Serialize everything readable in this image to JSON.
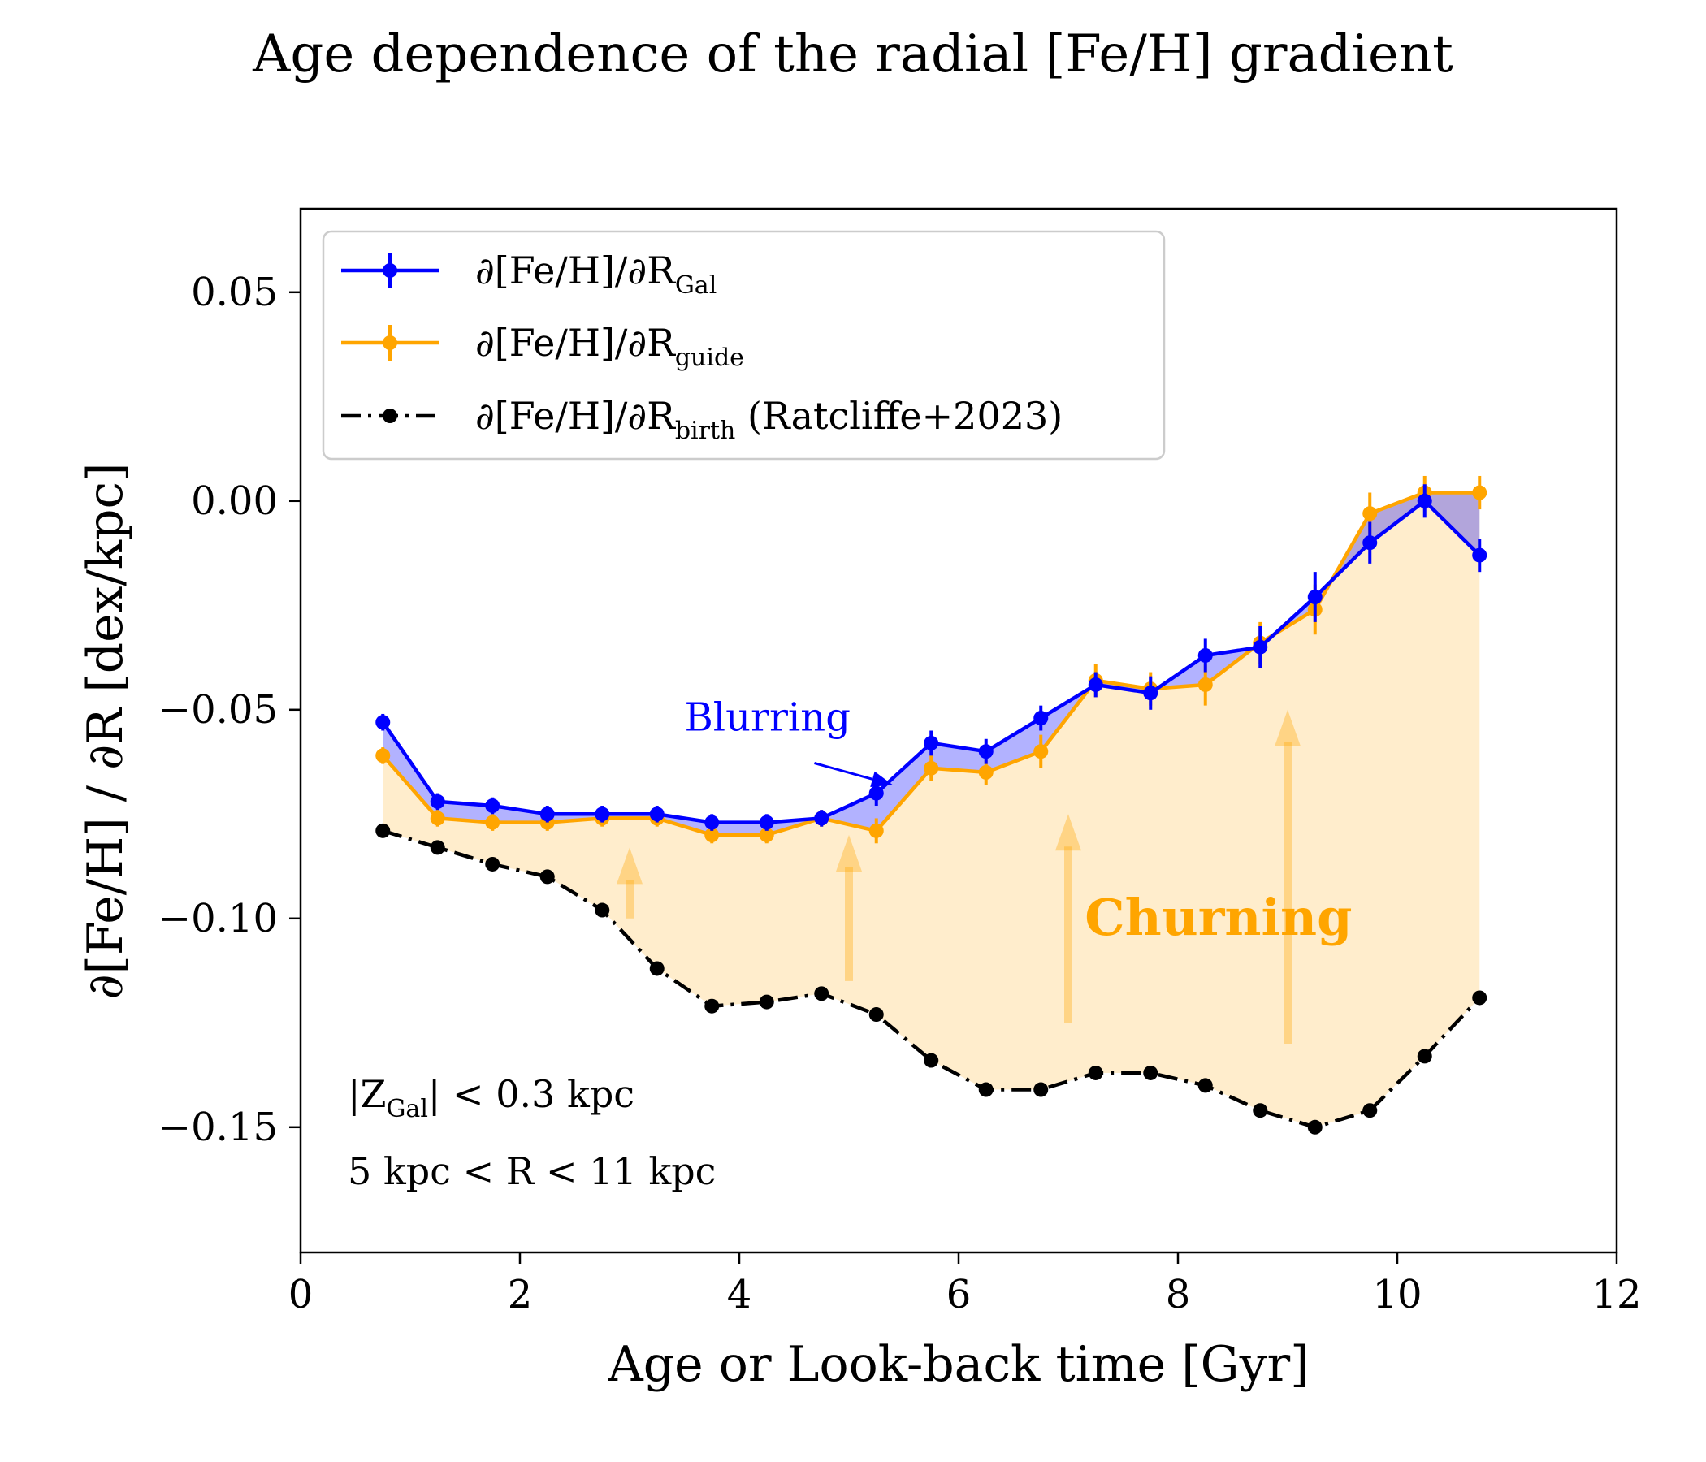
{
  "chart_data": {
    "type": "line",
    "title": "Age dependence of the radial [Fe/H] gradient",
    "xlabel": "Age or Look-back time [Gyr]",
    "ylabel": "∂[Fe/H] / ∂R [dex/kpc]",
    "xlim": [
      0,
      12
    ],
    "ylim": [
      -0.18,
      0.07
    ],
    "x_ticks": [
      0,
      2,
      4,
      6,
      8,
      10,
      12
    ],
    "x_tick_labels": [
      "0",
      "2",
      "4",
      "6",
      "8",
      "10",
      "12"
    ],
    "y_ticks": [
      0.05,
      0.0,
      -0.05,
      -0.1,
      -0.15
    ],
    "y_tick_labels": [
      "0.05",
      "0.00",
      "−0.05",
      "−0.10",
      "−0.15"
    ],
    "grid": false,
    "legend_position": "top-left",
    "x": [
      0.75,
      1.25,
      1.75,
      2.25,
      2.75,
      3.25,
      3.75,
      4.25,
      4.75,
      5.25,
      5.75,
      6.25,
      6.75,
      7.25,
      7.75,
      8.25,
      8.75,
      9.25,
      9.75,
      10.25,
      10.75
    ],
    "series": [
      {
        "key": "gal",
        "legend": {
          "main": "∂[Fe/H]/∂R",
          "sub": "Gal",
          "extra": ""
        },
        "color": "#0000ff",
        "linestyle": "solid",
        "values": [
          -0.053,
          -0.072,
          -0.073,
          -0.075,
          -0.075,
          -0.075,
          -0.077,
          -0.077,
          -0.076,
          -0.07,
          -0.058,
          -0.06,
          -0.052,
          -0.044,
          -0.046,
          -0.037,
          -0.035,
          -0.023,
          -0.01,
          0.0,
          -0.013
        ],
        "errors": [
          0.002,
          0.002,
          0.002,
          0.002,
          0.002,
          0.002,
          0.002,
          0.002,
          0.002,
          0.003,
          0.003,
          0.003,
          0.003,
          0.003,
          0.004,
          0.004,
          0.005,
          0.006,
          0.005,
          0.004,
          0.004
        ]
      },
      {
        "key": "guide",
        "legend": {
          "main": "∂[Fe/H]/∂R",
          "sub": "guide",
          "extra": ""
        },
        "color": "#ffa500",
        "linestyle": "solid",
        "values": [
          -0.061,
          -0.076,
          -0.077,
          -0.077,
          -0.076,
          -0.076,
          -0.08,
          -0.08,
          -0.076,
          -0.079,
          -0.064,
          -0.065,
          -0.06,
          -0.043,
          -0.045,
          -0.044,
          -0.034,
          -0.026,
          -0.003,
          0.002,
          0.002
        ],
        "errors": [
          0.002,
          0.002,
          0.002,
          0.002,
          0.002,
          0.002,
          0.002,
          0.002,
          0.002,
          0.003,
          0.003,
          0.003,
          0.004,
          0.004,
          0.004,
          0.005,
          0.005,
          0.006,
          0.005,
          0.004,
          0.004
        ]
      },
      {
        "key": "birth",
        "legend": {
          "main": "∂[Fe/H]/∂R",
          "sub": "birth",
          "extra": " (Ratcliffe+2023)"
        },
        "color": "#000000",
        "linestyle": "dashdot",
        "values": [
          -0.079,
          -0.083,
          -0.087,
          -0.09,
          -0.098,
          -0.112,
          -0.121,
          -0.12,
          -0.118,
          -0.123,
          -0.134,
          -0.141,
          -0.141,
          -0.137,
          -0.137,
          -0.14,
          -0.146,
          -0.15,
          -0.146,
          -0.133,
          -0.119
        ]
      }
    ],
    "annotations": {
      "blurring": {
        "text": "Blurring",
        "color": "#0000ff",
        "arrow_from": [
          3.5,
          -0.055
        ],
        "arrow_to": [
          5.4,
          -0.068
        ]
      },
      "churning": {
        "text": "Churning",
        "color": "#ffa500",
        "at": [
          7.15,
          -0.1
        ]
      },
      "churn_arrows": [
        {
          "x": 3,
          "y_from": -0.1,
          "y_to": -0.083
        },
        {
          "x": 5,
          "y_from": -0.115,
          "y_to": -0.08
        },
        {
          "x": 7,
          "y_from": -0.125,
          "y_to": -0.075
        },
        {
          "x": 9,
          "y_from": -0.13,
          "y_to": -0.05
        }
      ],
      "selection_1": {
        "pre": "|Z",
        "sub": "Gal",
        "post": "| < 0.3 kpc"
      },
      "selection_2": "5 kpc < R < 11 kpc"
    }
  }
}
